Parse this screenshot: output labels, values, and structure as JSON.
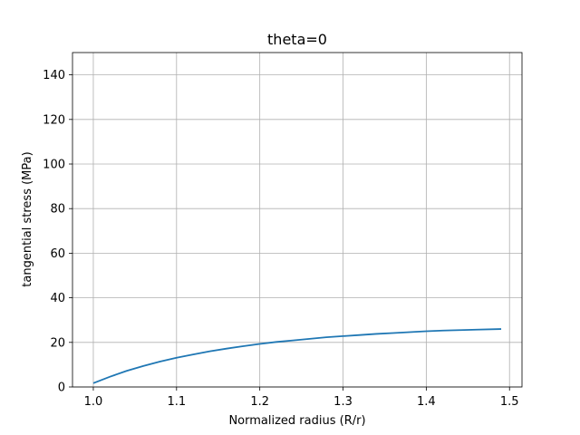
{
  "chart_data": {
    "type": "line",
    "title": "theta=0",
    "xlabel": "Normalized radius (R/r)",
    "ylabel": "tangential stress (MPa)",
    "xlim": [
      0.975,
      1.515
    ],
    "ylim": [
      0,
      150
    ],
    "xticks": [
      1.0,
      1.1,
      1.2,
      1.3,
      1.4,
      1.5
    ],
    "xtick_labels": [
      "1.0",
      "1.1",
      "1.2",
      "1.3",
      "1.4",
      "1.5"
    ],
    "yticks": [
      0,
      20,
      40,
      60,
      80,
      100,
      120,
      140
    ],
    "ytick_labels": [
      "0",
      "20",
      "40",
      "60",
      "80",
      "100",
      "120",
      "140"
    ],
    "grid": true,
    "series": [
      {
        "color": "#1f77b4",
        "x": [
          1.0,
          1.02,
          1.04,
          1.06,
          1.08,
          1.1,
          1.12,
          1.14,
          1.16,
          1.18,
          1.2,
          1.22,
          1.24,
          1.26,
          1.28,
          1.3,
          1.32,
          1.34,
          1.36,
          1.38,
          1.4,
          1.42,
          1.44,
          1.46,
          1.49
        ],
        "y": [
          1.7,
          4.6,
          7.2,
          9.4,
          11.4,
          13.1,
          14.6,
          16.0,
          17.2,
          18.3,
          19.3,
          20.2,
          20.9,
          21.6,
          22.3,
          22.8,
          23.3,
          23.8,
          24.2,
          24.6,
          25.0,
          25.3,
          25.5,
          25.7,
          26.0
        ]
      }
    ]
  }
}
